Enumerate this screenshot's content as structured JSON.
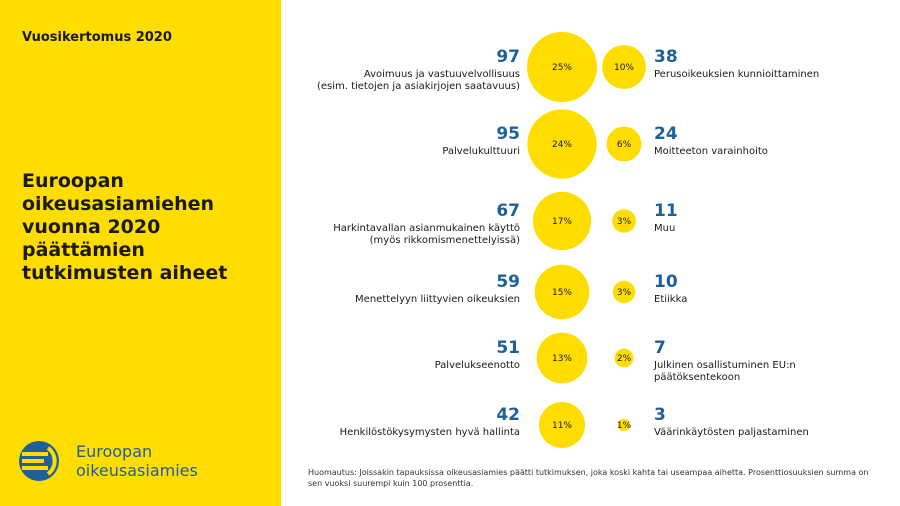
{
  "sidebar": {
    "report_label": "Vuosikertomus 2020",
    "title": "Euroopan oikeusasiamiehen vuonna 2020 päättämien tutkimusten aiheet",
    "logo_line1": "Euroopan",
    "logo_line2": "oikeusasiamies"
  },
  "colors": {
    "accent": "#ffdd00",
    "number": "#1f5f9a"
  },
  "chart_data": {
    "type": "bubble",
    "left": [
      {
        "count": 97,
        "percent": "25%",
        "label": [
          "Avoimuus ja vastuuvelvollisuus",
          "(esim. tietojen ja asiakirjojen saatavuus)"
        ]
      },
      {
        "count": 95,
        "percent": "24%",
        "label": [
          "Palvelukulttuuri"
        ]
      },
      {
        "count": 67,
        "percent": "17%",
        "label": [
          "Harkintavallan asianmukainen käyttö",
          "(myös rikkomismenettelyissä)"
        ]
      },
      {
        "count": 59,
        "percent": "15%",
        "label": [
          "Menettelyyn liittyvien oikeuksien"
        ]
      },
      {
        "count": 51,
        "percent": "13%",
        "label": [
          "Palvelukseenotto"
        ]
      },
      {
        "count": 42,
        "percent": "11%",
        "label": [
          "Henkilöstökysymysten hyvä hallinta"
        ]
      }
    ],
    "right": [
      {
        "count": 38,
        "percent": "10%",
        "label": [
          "Perusoikeuksien kunnioittaminen"
        ]
      },
      {
        "count": 24,
        "percent": "6%",
        "label": [
          "Moitteeton varainhoito"
        ]
      },
      {
        "count": 11,
        "percent": "3%",
        "label": [
          "Muu"
        ]
      },
      {
        "count": 10,
        "percent": "3%",
        "label": [
          "Etiikka"
        ]
      },
      {
        "count": 7,
        "percent": "2%",
        "label": [
          "Julkinen osallistuminen EU:n",
          "päätöksentekoon"
        ]
      },
      {
        "count": 3,
        "percent": "1%",
        "label": [
          "Väärinkäytösten paljastaminen"
        ]
      }
    ]
  },
  "footnote": "Huomautus: Joissakin tapauksissa oikeusasiamies päätti tutkimuksen, joka koski kahta tai useampaa aihetta. Prosenttiosuuksien summa on sen vuoksi suurempi kuin 100 prosenttia."
}
